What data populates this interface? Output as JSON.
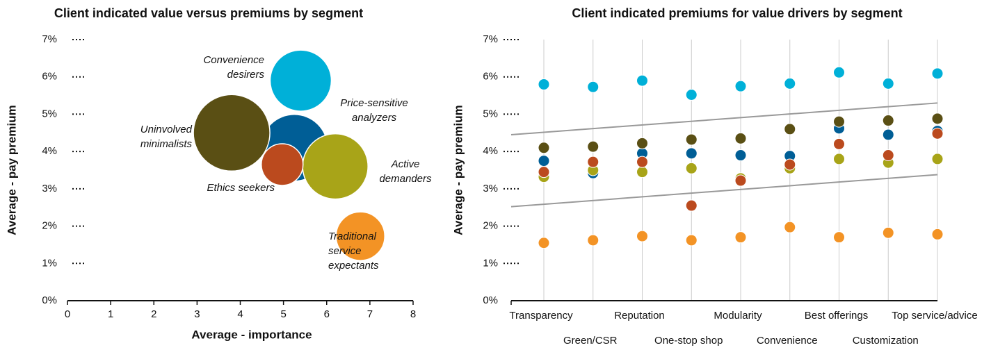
{
  "chart_data": [
    {
      "type": "bubble",
      "title": "Client indicated value versus premiums by segment",
      "x_label": "Average - importance",
      "y_label": "Average - pay premium",
      "xlim": [
        0,
        8
      ],
      "xticks": [
        0,
        1,
        2,
        3,
        4,
        5,
        6,
        7,
        8
      ],
      "ylim": [
        0,
        7
      ],
      "yticks": [
        {
          "value": 0,
          "label": "0%"
        },
        {
          "value": 1,
          "label": "1%"
        },
        {
          "value": 2,
          "label": "2%"
        },
        {
          "value": 3,
          "label": "3%"
        },
        {
          "value": 4,
          "label": "4%"
        },
        {
          "value": 5,
          "label": "5%"
        },
        {
          "value": 6,
          "label": "6%"
        },
        {
          "value": 7,
          "label": "7%"
        }
      ],
      "series": [
        {
          "name": "Price-sensitive analyzers",
          "color": "#005e96",
          "x": [
            5.25
          ],
          "values": [
            4.1
          ],
          "sizes": [
            48
          ]
        },
        {
          "name": "Convenience desirers",
          "color": "#00b0d8",
          "x": [
            5.4
          ],
          "values": [
            5.9
          ],
          "sizes": [
            44
          ]
        },
        {
          "name": "Uninvolved minimalists",
          "color": "#5a4f14",
          "x": [
            3.8
          ],
          "values": [
            4.5
          ],
          "sizes": [
            55
          ]
        },
        {
          "name": "Active demanders",
          "color": "#a8a418",
          "x": [
            6.2
          ],
          "values": [
            3.6
          ],
          "sizes": [
            47
          ]
        },
        {
          "name": "Ethics seekers",
          "color": "#bb4a1e",
          "x": [
            4.97
          ],
          "values": [
            3.65
          ],
          "sizes": [
            30
          ]
        },
        {
          "name": "Traditional service expectants",
          "color": "#f39325",
          "x": [
            6.78
          ],
          "values": [
            1.73
          ],
          "sizes": [
            35
          ]
        }
      ]
    },
    {
      "type": "dot",
      "title": "Client indicated premiums for value drivers by segment",
      "y_label": "Average - pay premium",
      "categories": [
        "Transparency",
        "Green/CSR",
        "Reputation",
        "One-stop shop",
        "Modularity",
        "Convenience",
        "Best offerings",
        "Customization",
        "Top service/advice"
      ],
      "ylim": [
        0,
        7
      ],
      "yticks": [
        {
          "value": 0,
          "label": "0%"
        },
        {
          "value": 1,
          "label": "1%"
        },
        {
          "value": 2,
          "label": "2%"
        },
        {
          "value": 3,
          "label": "3%"
        },
        {
          "value": 4,
          "label": "4%"
        },
        {
          "value": 5,
          "label": "5%"
        },
        {
          "value": 6,
          "label": "6%"
        },
        {
          "value": 7,
          "label": "7%"
        }
      ],
      "series": [
        {
          "color": "#00b0d8",
          "values": [
            5.8,
            5.73,
            5.9,
            5.52,
            5.75,
            5.82,
            6.12,
            5.82,
            6.09
          ]
        },
        {
          "color": "#005e96",
          "values": [
            3.75,
            3.42,
            3.95,
            3.95,
            3.9,
            3.88,
            4.62,
            4.45,
            4.55
          ]
        },
        {
          "color": "#a8a418",
          "values": [
            3.32,
            3.5,
            3.45,
            3.55,
            3.28,
            3.55,
            3.8,
            3.7,
            3.8
          ]
        },
        {
          "color": "#bb4a1e",
          "values": [
            3.45,
            3.72,
            3.72,
            2.55,
            3.22,
            3.65,
            4.2,
            3.9,
            4.48
          ]
        },
        {
          "color": "#5a4f14",
          "values": [
            4.1,
            4.13,
            4.22,
            4.32,
            4.35,
            4.6,
            4.8,
            4.83,
            4.88
          ]
        },
        {
          "color": "#f39325",
          "values": [
            1.55,
            1.62,
            1.73,
            1.62,
            1.7,
            1.97,
            1.7,
            1.82,
            1.78
          ]
        }
      ],
      "trend_lines": [
        [
          4.45,
          5.3
        ],
        [
          2.52,
          3.38
        ]
      ],
      "trend_color": "#999999"
    }
  ]
}
